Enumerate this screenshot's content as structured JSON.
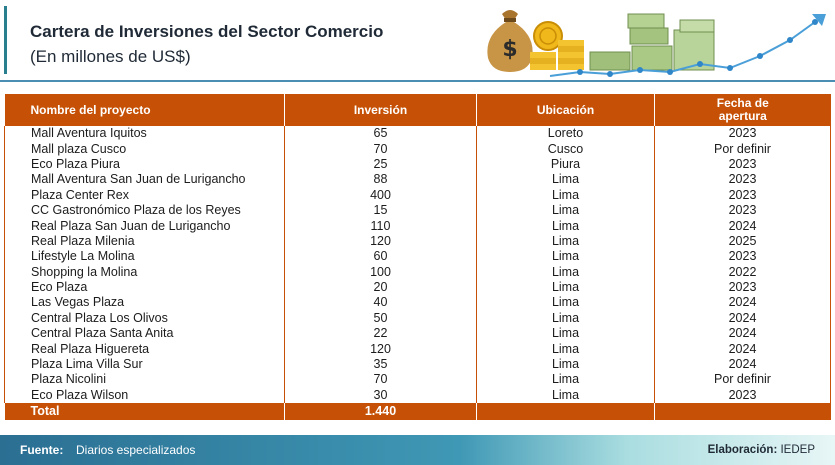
{
  "header": {
    "title": "Cartera de Inversiones del Sector Comercio",
    "subtitle": "(En millones de US$)"
  },
  "table": {
    "columns": [
      "Nombre del proyecto",
      "Inversión",
      "Ubicación",
      "Fecha de apertura"
    ],
    "rows": [
      {
        "name": "Mall Aventura Iquitos",
        "investment": "65",
        "location": "Loreto",
        "opening": "2023"
      },
      {
        "name": "Mall plaza Cusco",
        "investment": "70",
        "location": "Cusco",
        "opening": "Por definir"
      },
      {
        "name": "Eco Plaza Piura",
        "investment": "25",
        "location": "Piura",
        "opening": "2023"
      },
      {
        "name": "Mall Aventura San Juan de Lurigancho",
        "investment": "88",
        "location": "Lima",
        "opening": "2023"
      },
      {
        "name": "Plaza Center Rex",
        "investment": "400",
        "location": "Lima",
        "opening": "2023"
      },
      {
        "name": "CC Gastronómico Plaza de los Reyes",
        "investment": "15",
        "location": "Lima",
        "opening": "2023"
      },
      {
        "name": "Real Plaza San Juan de Lurigancho",
        "investment": "110",
        "location": "Lima",
        "opening": "2024"
      },
      {
        "name": "Real Plaza Milenia",
        "investment": "120",
        "location": "Lima",
        "opening": "2025"
      },
      {
        "name": "Lifestyle La Molina",
        "investment": "60",
        "location": "Lima",
        "opening": "2023"
      },
      {
        "name": "Shopping la Molina",
        "investment": "100",
        "location": "Lima",
        "opening": "2022"
      },
      {
        "name": "Eco Plaza",
        "investment": "20",
        "location": "Lima",
        "opening": "2023"
      },
      {
        "name": "Las Vegas Plaza",
        "investment": "40",
        "location": "Lima",
        "opening": "2024"
      },
      {
        "name": "Central Plaza Los Olivos",
        "investment": "50",
        "location": "Lima",
        "opening": "2024"
      },
      {
        "name": "Central Plaza Santa Anita",
        "investment": "22",
        "location": "Lima",
        "opening": "2024"
      },
      {
        "name": "Real Plaza Higuereta",
        "investment": "120",
        "location": "Lima",
        "opening": "2024"
      },
      {
        "name": "Plaza Lima Villa Sur",
        "investment": "35",
        "location": "Lima",
        "opening": "2024"
      },
      {
        "name": "Plaza Nicolini",
        "investment": "70",
        "location": "Lima",
        "opening": "Por definir"
      },
      {
        "name": "Eco Plaza Wilson",
        "investment": "30",
        "location": "Lima",
        "opening": "2023"
      }
    ],
    "total": {
      "label": "Total",
      "investment": "1.440"
    }
  },
  "footer": {
    "source_label": "Fuente:",
    "source_value": "Diarios especializados",
    "elaboration_label": "Elaboración:",
    "elaboration_value": "IEDEP"
  },
  "colors": {
    "accent_orange": "#c65106",
    "teal": "#2a7f8f",
    "footer_blue": "#2b6f93"
  },
  "icons": [
    "money-bag-icon",
    "coins-icon",
    "banknotes-icon",
    "growth-chart-icon"
  ]
}
